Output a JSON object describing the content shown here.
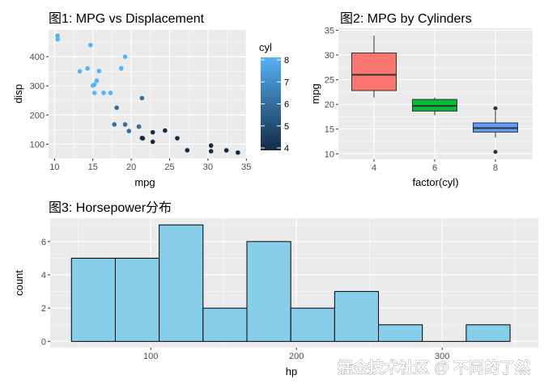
{
  "chart_data": [
    {
      "type": "scatter",
      "title": "图1: MPG vs Displacement",
      "xlabel": "mpg",
      "ylabel": "disp",
      "xlim": [
        9.225,
        35.075
      ],
      "ylim": [
        51,
        492
      ],
      "xticks": [
        10,
        15,
        20,
        25,
        30,
        35
      ],
      "yticks": [
        100,
        200,
        300,
        400
      ],
      "legend": {
        "title": "cyl",
        "position": "right",
        "range": [
          4,
          8
        ],
        "ticks": [
          4,
          5,
          6,
          7,
          8
        ],
        "low_color": "#132B43",
        "high_color": "#56B1F7"
      },
      "x": [
        21,
        21,
        22.8,
        21.4,
        18.7,
        18.1,
        14.3,
        24.4,
        22.8,
        19.2,
        17.8,
        16.4,
        17.3,
        15.2,
        10.4,
        10.4,
        14.7,
        32.4,
        30.4,
        33.9,
        21.5,
        15.5,
        15.2,
        13.3,
        19.2,
        27.3,
        26,
        30.4,
        15.8,
        19.7,
        15,
        21.4
      ],
      "y": [
        160,
        160,
        108,
        258,
        360,
        225,
        360,
        146.7,
        140.8,
        167.6,
        167.6,
        275.8,
        275.8,
        275.8,
        472,
        460,
        440,
        78.7,
        75.7,
        71.1,
        120.1,
        318,
        304,
        350,
        400,
        79,
        120.3,
        95.1,
        351,
        145,
        301,
        121
      ],
      "color": [
        6,
        6,
        4,
        6,
        8,
        6,
        8,
        4,
        4,
        6,
        6,
        8,
        8,
        8,
        8,
        8,
        8,
        4,
        4,
        4,
        4,
        8,
        8,
        8,
        8,
        4,
        4,
        4,
        8,
        6,
        8,
        4
      ]
    },
    {
      "type": "box",
      "title": "图2: MPG by Cylinders",
      "xlabel": "factor(cyl)",
      "ylabel": "mpg",
      "ylim": [
        8.9,
        35.4
      ],
      "yticks": [
        10,
        15,
        20,
        25,
        30,
        35
      ],
      "categories": [
        "4",
        "6",
        "8"
      ],
      "boxes": [
        {
          "q1": 22.8,
          "median": 26,
          "q3": 30.4,
          "lower": 21.4,
          "upper": 33.9,
          "outliers": [],
          "fill": "#F8766D"
        },
        {
          "q1": 18.65,
          "median": 19.7,
          "q3": 21,
          "lower": 17.8,
          "upper": 21.4,
          "outliers": [],
          "fill": "#00BA38"
        },
        {
          "q1": 14.4,
          "median": 15.2,
          "q3": 16.25,
          "lower": 13.3,
          "upper": 18.7,
          "outliers": [
            10.4,
            19.2
          ],
          "fill": "#619CFF"
        }
      ]
    },
    {
      "type": "bar",
      "subtype": "histogram",
      "title": "图3: Horsepower分布",
      "xlabel": "hp",
      "ylabel": "count",
      "xlim": [
        31,
        366
      ],
      "ylim": [
        0,
        7.4
      ],
      "xticks": [
        100,
        200,
        300
      ],
      "yticks": [
        0,
        2,
        4,
        6
      ],
      "bin_start": 45.6,
      "bin_width": 30.1,
      "values": [
        5,
        5,
        7,
        2,
        6,
        2,
        3,
        1,
        0,
        1
      ],
      "fill": "#87CEEB"
    }
  ],
  "watermark": "掘金技术社区 @ 不同的了然"
}
